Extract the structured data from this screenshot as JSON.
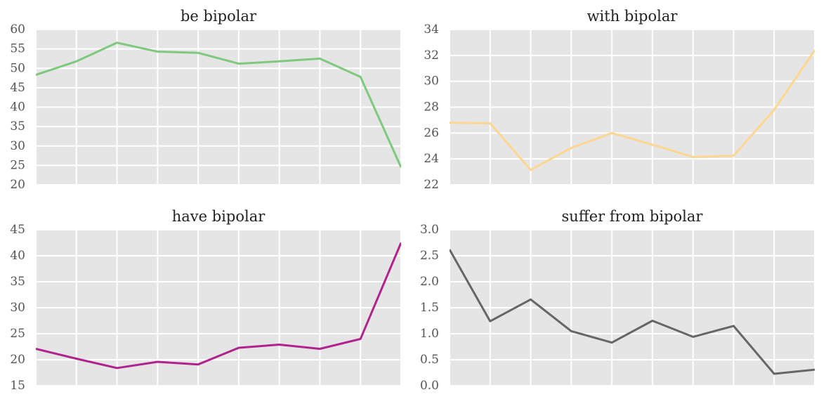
{
  "figure": {
    "background": "#ffffff",
    "panel_background": "#e5e5e5",
    "grid_color": "#ffffff"
  },
  "chart_data": [
    {
      "type": "line",
      "title": "be bipolar",
      "x": [
        0,
        1,
        2,
        3,
        4,
        5,
        6,
        7,
        8,
        9
      ],
      "values": [
        48.3,
        51.8,
        56.6,
        54.3,
        54.0,
        51.2,
        51.8,
        52.5,
        47.8,
        24.5
      ],
      "ylim": [
        20,
        60
      ],
      "yticks": [
        20,
        25,
        30,
        35,
        40,
        45,
        50,
        55,
        60
      ],
      "ytick_labels": [
        "20",
        "25",
        "30",
        "35",
        "40",
        "45",
        "50",
        "55",
        "60"
      ],
      "color": "#7fc97f",
      "grid": true
    },
    {
      "type": "line",
      "title": "with bipolar",
      "x": [
        0,
        1,
        2,
        3,
        4,
        5,
        6,
        7,
        8,
        9
      ],
      "values": [
        26.8,
        26.75,
        23.15,
        24.85,
        26.0,
        25.1,
        24.15,
        24.25,
        27.8,
        32.4
      ],
      "ylim": [
        22,
        34
      ],
      "yticks": [
        22,
        24,
        26,
        28,
        30,
        32,
        34
      ],
      "ytick_labels": [
        "22",
        "24",
        "26",
        "28",
        "30",
        "32",
        "34"
      ],
      "color": "#fdd791",
      "grid": true
    },
    {
      "type": "line",
      "title": "have bipolar",
      "x": [
        0,
        1,
        2,
        3,
        4,
        5,
        6,
        7,
        8,
        9
      ],
      "values": [
        22.1,
        20.2,
        18.4,
        19.6,
        19.1,
        22.3,
        22.9,
        22.1,
        24.0,
        42.5
      ],
      "ylim": [
        15,
        45
      ],
      "yticks": [
        15,
        20,
        25,
        30,
        35,
        40,
        45
      ],
      "ytick_labels": [
        "15",
        "20",
        "25",
        "30",
        "35",
        "40",
        "45"
      ],
      "color": "#b0238c",
      "grid": true
    },
    {
      "type": "line",
      "title": "suffer from bipolar",
      "x": [
        0,
        1,
        2,
        3,
        4,
        5,
        6,
        7,
        8,
        9
      ],
      "values": [
        2.62,
        1.24,
        1.66,
        1.05,
        0.83,
        1.25,
        0.94,
        1.15,
        0.23,
        0.31
      ],
      "ylim": [
        0,
        3
      ],
      "yticks": [
        0,
        0.5,
        1,
        1.5,
        2,
        2.5,
        3
      ],
      "ytick_labels": [
        "0.0",
        "0.5",
        "1.0",
        "1.5",
        "2.0",
        "2.5",
        "3.0"
      ],
      "color": "#666666",
      "grid": true
    }
  ]
}
